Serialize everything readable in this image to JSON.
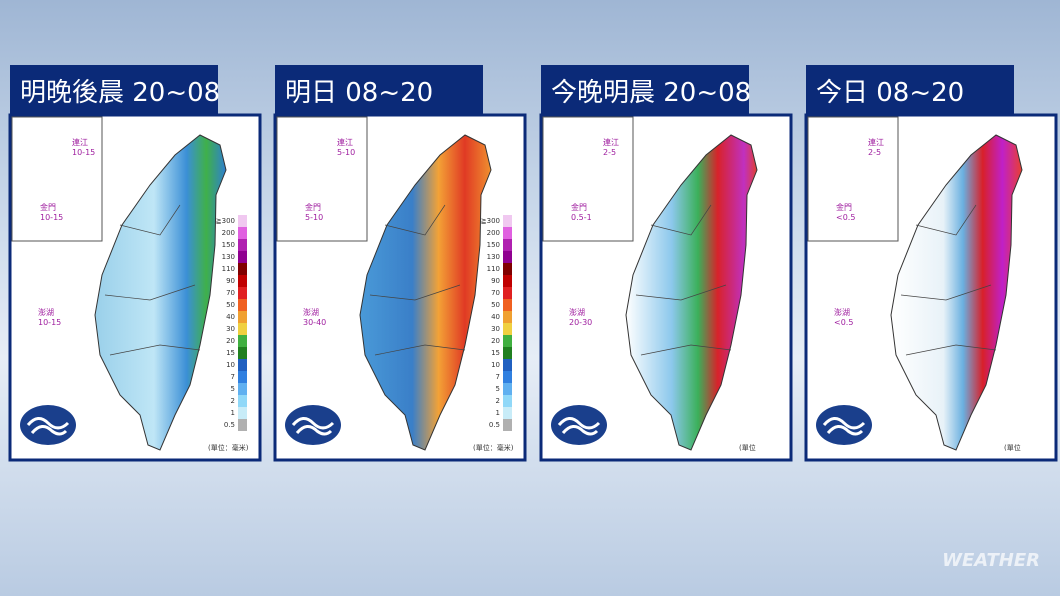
{
  "panels": [
    {
      "title": "明晚後晨 20~08",
      "insets": [
        {
          "name": "連江",
          "range": "10-15"
        },
        {
          "name": "金門",
          "range": "10-15"
        },
        {
          "name": "澎湖",
          "range": "10-15"
        }
      ],
      "unit": "(單位：毫米)",
      "show_legend": true
    },
    {
      "title": "明日 08~20",
      "insets": [
        {
          "name": "連江",
          "range": "5-10"
        },
        {
          "name": "金門",
          "range": "5-10"
        },
        {
          "name": "澎湖",
          "range": "30-40"
        }
      ],
      "unit": "(單位：毫米)",
      "show_legend": true
    },
    {
      "title": "今晚明晨 20~08",
      "insets": [
        {
          "name": "連江",
          "range": "2-5"
        },
        {
          "name": "金門",
          "range": "0.5-1"
        },
        {
          "name": "澎湖",
          "range": "20-30"
        }
      ],
      "unit": "(單位",
      "show_legend": false
    },
    {
      "title": "今日 08~20",
      "insets": [
        {
          "name": "連江",
          "range": "2-5"
        },
        {
          "name": "金門",
          "range": "<0.5"
        },
        {
          "name": "澎湖",
          "range": "<0.5"
        }
      ],
      "unit": "(單位",
      "show_legend": false
    }
  ],
  "legend_levels": [
    "≧300",
    "200",
    "150",
    "130",
    "110",
    "90",
    "70",
    "50",
    "40",
    "30",
    "20",
    "15",
    "10",
    "7",
    "5",
    "2",
    "1",
    "0.5"
  ],
  "watermark": "WEATHER"
}
